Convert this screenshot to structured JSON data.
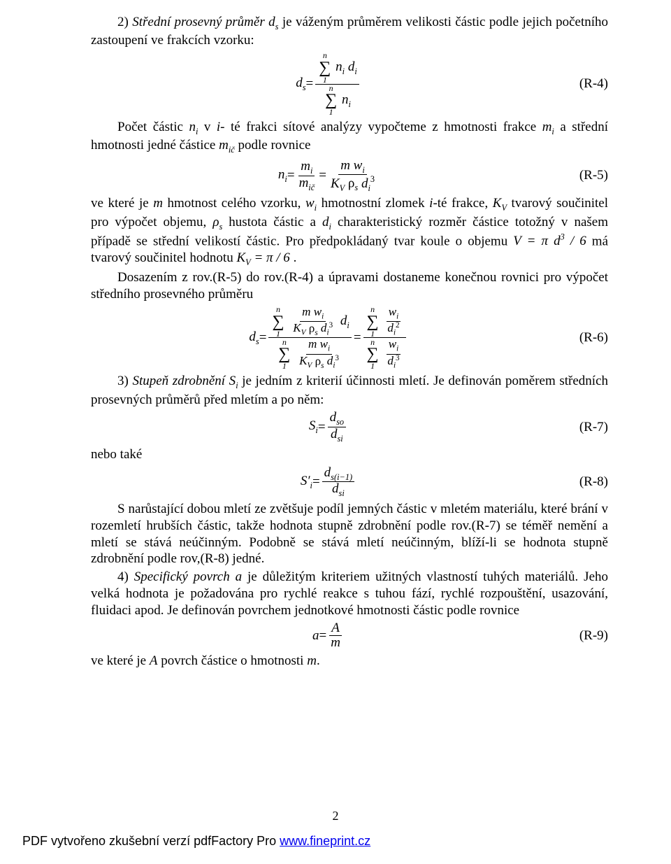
{
  "p1_a": "2) ",
  "p1_b": "Střední prosevný průměr  d",
  "p1_c": " je váženým průměrem velikosti částic podle jejich početního zastoupení ve frakcích vzorku:",
  "eq4": {
    "lhs": "d",
    "sub": "s",
    "sumtop": "n",
    "sumbot": "1",
    "numterm": "n",
    "numsub": "i",
    "numterm2": " d",
    "numsub2": "i",
    "denterm": "n",
    "densub": "i",
    "label": "(R-4)"
  },
  "p2_a": "Počet částic  ",
  "p2_b": "  v ",
  "p2_c": "- té frakci sítové analýzy vypočteme z hmotnosti frakce  ",
  "p2_d": " a střední hmotnosti jedné částice  ",
  "p2_e": " podle rovnice",
  "eq5": {
    "label": "(R-5)"
  },
  "p3_a": "ve které je  ",
  "p3_b": "  hmotnost celého vzorku,  ",
  "p3_c": "  hmotnostní zlomek ",
  "p3_d": "-té frakce, ",
  "p3_e": "  tvarový součinitel pro výpočet objemu, ",
  "p3_f": " hustota částic a ",
  "p3_g": "  charakteristický rozměr částice totožný v našem případě se střední velikostí částic. Pro předpokládaný tvar koule  o objemu ",
  "p3_h": "  má tvarový součinitel hodnotu  ",
  "p3_i": " .",
  "p4_a": "Dosazením  z rov.(R-5)  do  rov.(R-4)  a  úpravami  dostaneme  konečnou  rovnici  pro výpočet středního prosevného průměru",
  "eq6": {
    "label": "(R-6)"
  },
  "p5_a": "3) ",
  "p5_b": "Stupeň zdrobnění  S",
  "p5_c": "   je jedním z kriterií účinnosti mletí. Je definován poměrem středních prosevných průměrů před mletím a po něm:",
  "eq7": {
    "label": "(R-7)"
  },
  "p6": "nebo také",
  "eq8": {
    "label": "(R-8)"
  },
  "p7": "S narůstající dobou mletí ze zvětšuje podíl jemných částic v mletém materiálu, které brání v rozemletí hrubších částic, takže hodnota stupně zdrobnění podle rov.(R-7) se téměř nemění a mletí se stává neúčinným. Podobně se stává mletí neúčinným, blíží-li se hodnota stupně zdrobnění podle rov,(R-8) jedné.",
  "p8_a": "4) ",
  "p8_b": "Specifický povrch a",
  "p8_c": "   je důležitým kriteriem užitných vlastností tuhých materiálů. Jeho velká hodnota je požadována pro rychlé reakce s tuhou fází, rychlé rozpouštění, usazování, fluidaci apod. Je definován povrchem jednotkové hmotnosti částic podle rovnice",
  "eq9": {
    "label": "(R-9)"
  },
  "p9_a": "ve které je  ",
  "p9_b": "  povrch částice o hmotnosti  ",
  "p9_c": ".",
  "pagenum": "2",
  "footer_a": "PDF vytvořeno zkušební verzí pdfFactory Pro ",
  "footer_link": "www.fineprint.cz"
}
